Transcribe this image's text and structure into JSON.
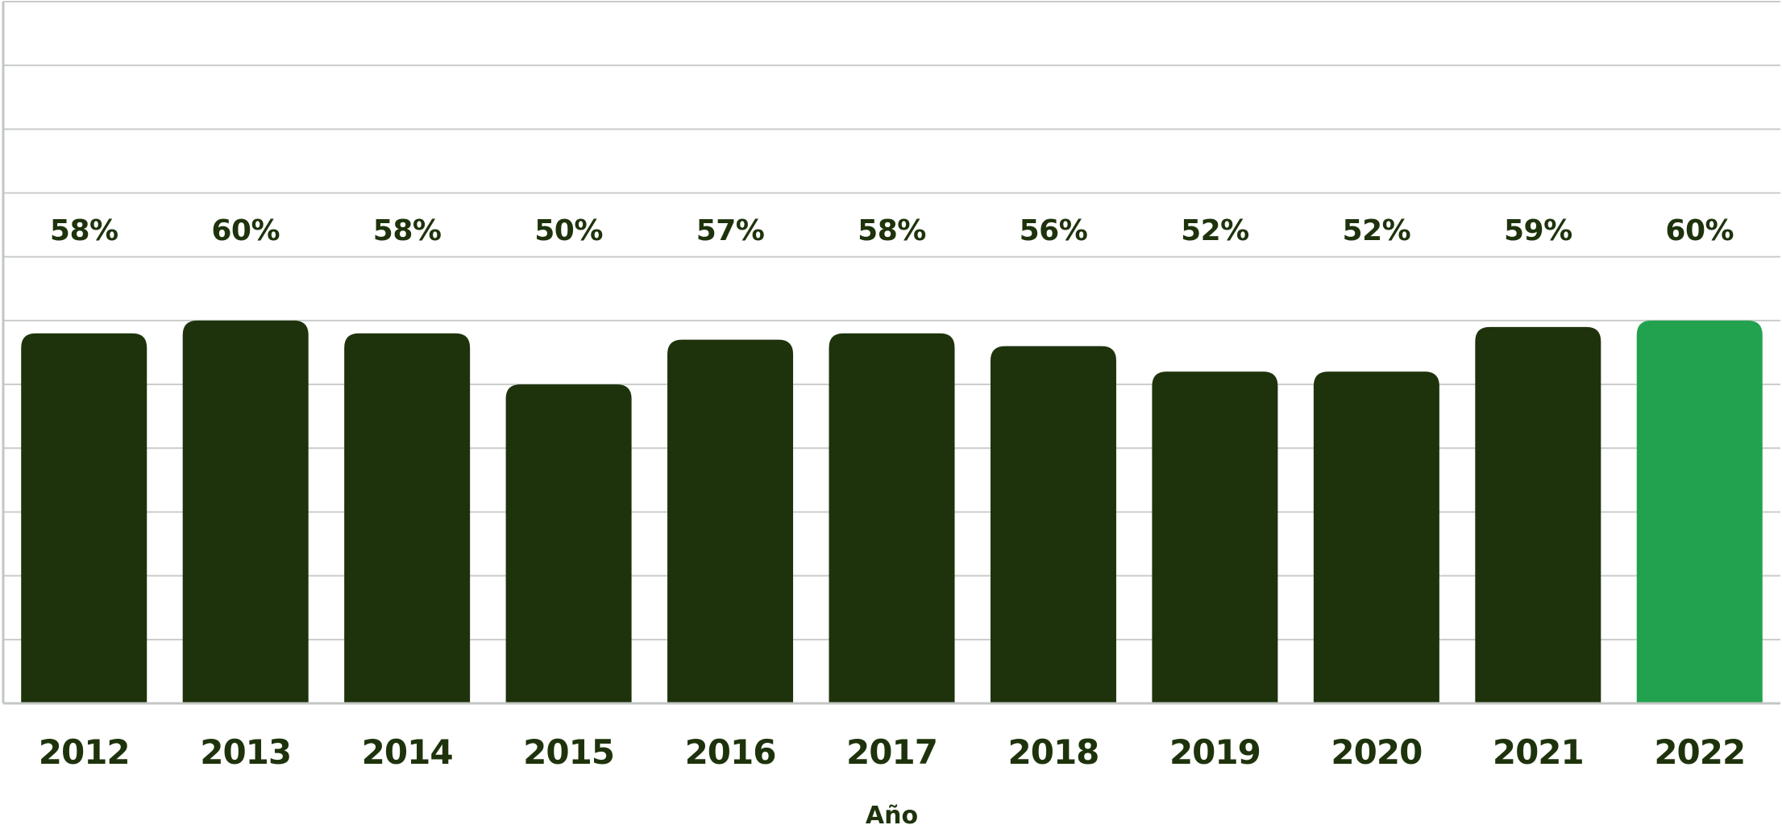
{
  "chart_data": {
    "type": "bar",
    "title": "",
    "xlabel": "Año",
    "ylabel": "",
    "ylim": [
      0,
      110
    ],
    "grid": true,
    "legend": "none",
    "categories": [
      "2012",
      "2013",
      "2014",
      "2015",
      "2016",
      "2017",
      "2018",
      "2019",
      "2020",
      "2021",
      "2022"
    ],
    "values": [
      58,
      60,
      58,
      50,
      57,
      58,
      56,
      52,
      52,
      59,
      60
    ],
    "data_labels": [
      "58%",
      "60%",
      "58%",
      "50%",
      "57%",
      "58%",
      "56%",
      "52%",
      "52%",
      "59%",
      "60%"
    ],
    "highlight_category": "2022",
    "colors": {
      "bar": "#1e330c",
      "highlight_bar": "#22a24f",
      "label_text": "#1e330c",
      "grid": "#c9cdc9",
      "axis": "#c3c7c3"
    }
  }
}
